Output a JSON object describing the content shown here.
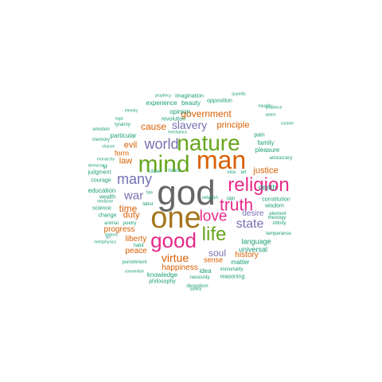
{
  "palette": {
    "grey": "#666666",
    "olive": "#a6761d",
    "orange": "#d95f02",
    "purple": "#7570b3",
    "pink": "#e7298a",
    "green": "#66a61e",
    "teal": "#1b9e77"
  },
  "words": [
    {
      "text": "god",
      "color": "#666666"
    },
    {
      "text": "one",
      "color": "#a6761d"
    },
    {
      "text": "man",
      "color": "#d95f02"
    },
    {
      "text": "mind",
      "color": "#66a61e"
    },
    {
      "text": "nature",
      "color": "#66a61e"
    },
    {
      "text": "good",
      "color": "#e7298a"
    },
    {
      "text": "religion",
      "color": "#e7298a"
    },
    {
      "text": "life",
      "color": "#66a61e"
    },
    {
      "text": "truth",
      "color": "#e7298a"
    },
    {
      "text": "love",
      "color": "#e7298a"
    },
    {
      "text": "world",
      "color": "#7570b3"
    },
    {
      "text": "many",
      "color": "#7570b3"
    },
    {
      "text": "state",
      "color": "#7570b3"
    },
    {
      "text": "war",
      "color": "#7570b3"
    },
    {
      "text": "virtue",
      "color": "#d95f02"
    },
    {
      "text": "slavery",
      "color": "#7570b3"
    },
    {
      "text": "government",
      "color": "#d95f02"
    },
    {
      "text": "cause",
      "color": "#d95f02"
    },
    {
      "text": "soul",
      "color": "#7570b3"
    },
    {
      "text": "principle",
      "color": "#d95f02"
    },
    {
      "text": "justice",
      "color": "#d95f02"
    },
    {
      "text": "time",
      "color": "#d95f02"
    },
    {
      "text": "duty",
      "color": "#d95f02"
    },
    {
      "text": "happiness",
      "color": "#d95f02"
    },
    {
      "text": "law",
      "color": "#d95f02"
    },
    {
      "text": "evil",
      "color": "#d95f02"
    },
    {
      "text": "history",
      "color": "#d95f02"
    },
    {
      "text": "desire",
      "color": "#7570b3"
    },
    {
      "text": "progress",
      "color": "#d95f02"
    },
    {
      "text": "liberty",
      "color": "#d95f02"
    },
    {
      "text": "peace",
      "color": "#d95f02"
    },
    {
      "text": "death",
      "color": "#1b9e77"
    },
    {
      "text": "sense",
      "color": "#d95f02"
    },
    {
      "text": "language",
      "color": "#1b9e77"
    },
    {
      "text": "universal",
      "color": "#1b9e77"
    },
    {
      "text": "form",
      "color": "#d95f02"
    },
    {
      "text": "particular",
      "color": "#1b9e77"
    },
    {
      "text": "opinion",
      "color": "#1b9e77"
    },
    {
      "text": "pleasure",
      "color": "#1b9e77"
    },
    {
      "text": "family",
      "color": "#1b9e77"
    },
    {
      "text": "education",
      "color": "#1b9e77"
    },
    {
      "text": "idea",
      "color": "#1b9e77"
    },
    {
      "text": "knowledge",
      "color": "#1b9e77"
    },
    {
      "text": "matter",
      "color": "#1b9e77"
    },
    {
      "text": "experience",
      "color": "#1b9e77"
    },
    {
      "text": "beauty",
      "color": "#1b9e77"
    },
    {
      "text": "revolution",
      "color": "#1b9e77"
    },
    {
      "text": "imagination",
      "color": "#1b9e77"
    },
    {
      "text": "opposition",
      "color": "#1b9e77"
    },
    {
      "text": "pain",
      "color": "#1b9e77"
    },
    {
      "text": "wisdom",
      "color": "#1b9e77"
    },
    {
      "text": "constitution",
      "color": "#1b9e77"
    },
    {
      "text": "wealth",
      "color": "#1b9e77"
    },
    {
      "text": "courage",
      "color": "#1b9e77"
    },
    {
      "text": "judgment",
      "color": "#1b9e77"
    },
    {
      "text": "science",
      "color": "#1b9e77"
    },
    {
      "text": "change",
      "color": "#1b9e77"
    },
    {
      "text": "philosophy",
      "color": "#1b9e77"
    },
    {
      "text": "reasoning",
      "color": "#1b9e77"
    },
    {
      "text": "immortality",
      "color": "#1b9e77"
    },
    {
      "text": "despotism",
      "color": "#1b9e77"
    },
    {
      "text": "punishment",
      "color": "#1b9e77"
    },
    {
      "text": "temperance",
      "color": "#1b9e77"
    },
    {
      "text": "aristocracy",
      "color": "#1b9e77"
    },
    {
      "text": "relation",
      "color": "#1b9e77"
    },
    {
      "text": "necessity",
      "color": "#1b9e77"
    },
    {
      "text": "memory",
      "color": "#1b9e77"
    },
    {
      "text": "emotion",
      "color": "#1b9e77"
    },
    {
      "text": "tyranny",
      "color": "#1b9e77"
    },
    {
      "text": "labor",
      "color": "#1b9e77"
    },
    {
      "text": "honor",
      "color": "#1b9e77"
    },
    {
      "text": "citizen",
      "color": "#1b9e77"
    },
    {
      "text": "animal",
      "color": "#1b9e77"
    },
    {
      "text": "poetry",
      "color": "#1b9e77"
    },
    {
      "text": "habit",
      "color": "#1b9e77"
    },
    {
      "text": "sign",
      "color": "#1b9e77"
    },
    {
      "text": "vice",
      "color": "#1b9e77"
    },
    {
      "text": "art",
      "color": "#1b9e77"
    },
    {
      "text": "theology",
      "color": "#1b9e77"
    },
    {
      "text": "element",
      "color": "#1b9e77"
    },
    {
      "text": "infinity",
      "color": "#1b9e77"
    },
    {
      "text": "equality",
      "color": "#1b9e77"
    },
    {
      "text": "fate",
      "color": "#1b9e77"
    },
    {
      "text": "quantity",
      "color": "#1b9e77"
    },
    {
      "text": "quality",
      "color": "#1b9e77"
    },
    {
      "text": "prudence",
      "color": "#1b9e77"
    },
    {
      "text": "space",
      "color": "#1b9e77"
    },
    {
      "text": "custom",
      "color": "#1b9e77"
    },
    {
      "text": "prophecy",
      "color": "#1b9e77"
    },
    {
      "text": "eternity",
      "color": "#1b9e77"
    },
    {
      "text": "logic",
      "color": "#1b9e77"
    },
    {
      "text": "mechanics",
      "color": "#1b9e77"
    },
    {
      "text": "chance",
      "color": "#1b9e77"
    },
    {
      "text": "monarchy",
      "color": "#1b9e77"
    },
    {
      "text": "democracy",
      "color": "#1b9e77"
    },
    {
      "text": "medicine",
      "color": "#1b9e77"
    },
    {
      "text": "sin",
      "color": "#1b9e77"
    },
    {
      "text": "rhetoric",
      "color": "#1b9e77"
    },
    {
      "text": "metaphysics",
      "color": "#1b9e77"
    },
    {
      "text": "convention",
      "color": "#1b9e77"
    },
    {
      "text": "in",
      "color": "#1b9e77"
    }
  ]
}
